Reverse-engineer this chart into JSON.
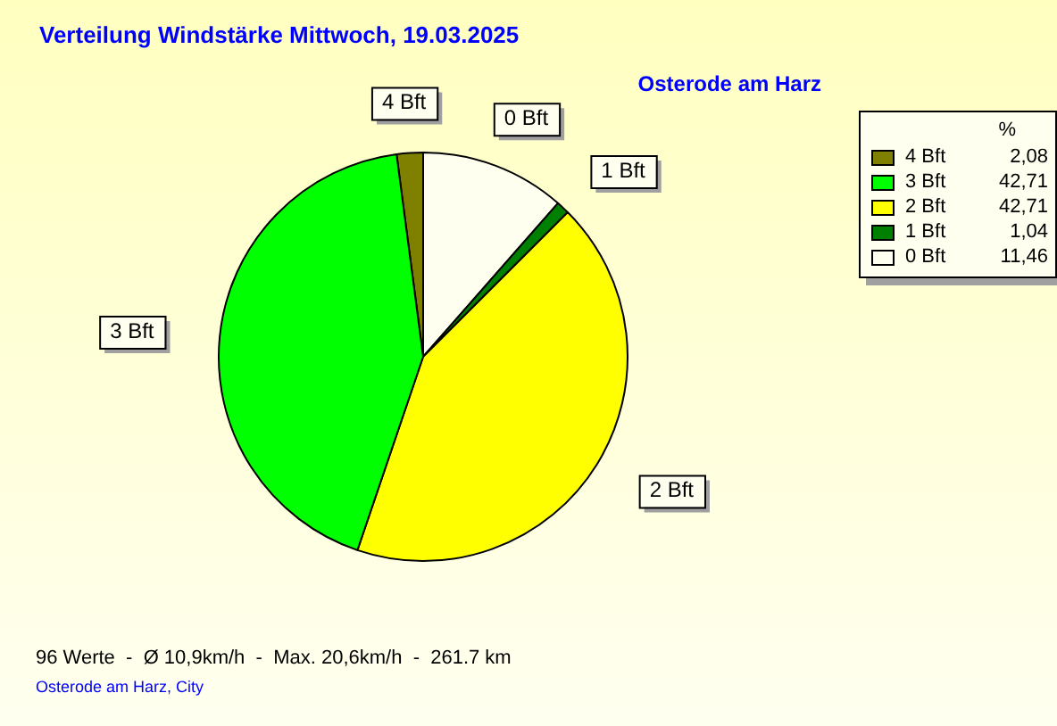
{
  "chart_data": {
    "type": "pie",
    "title": "Verteilung Windstärke  Mittwoch, 19.03.2025",
    "subtitle": "Osterode am Harz",
    "categories": [
      "4 Bft",
      "3 Bft",
      "2 Bft",
      "1 Bft",
      "0 Bft"
    ],
    "values": [
      2.08,
      42.71,
      42.71,
      1.04,
      11.46
    ],
    "colors": [
      "#808000",
      "#00ff00",
      "#ffff00",
      "#008000",
      "#fffff0"
    ],
    "value_labels": [
      "2,08",
      "42,71",
      "42,71",
      "1,04",
      "11,46"
    ],
    "legend": "top right",
    "legend_title": "%",
    "annotations": [
      "96 Werte  -  Ø 10,9km/h  -  Max. 20,6km/h  -  261.7 km",
      "Osterode am Harz, City"
    ]
  }
}
